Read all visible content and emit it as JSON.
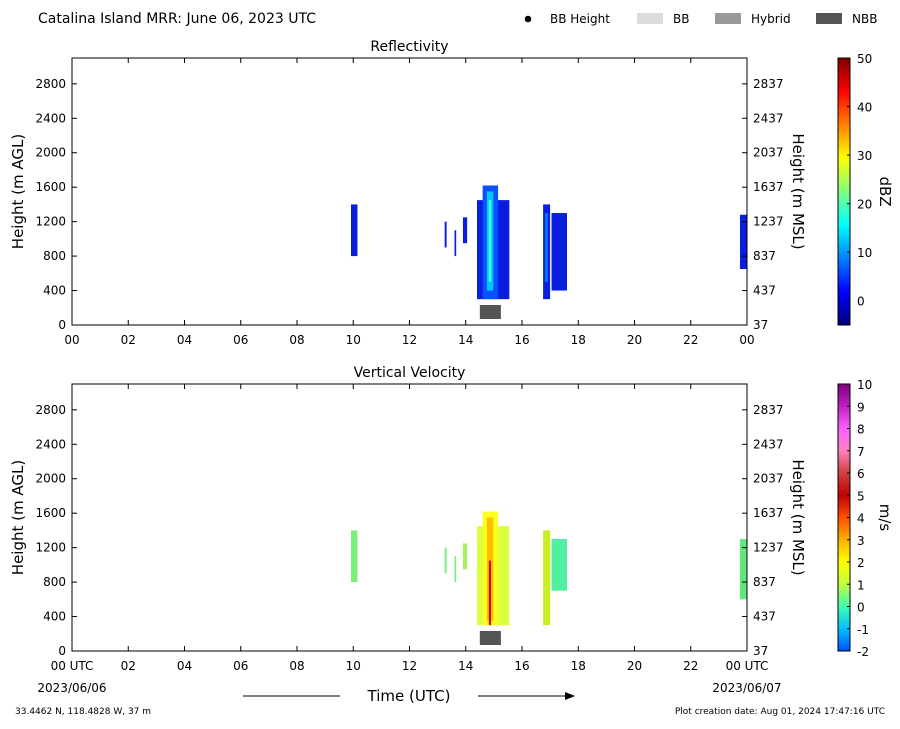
{
  "header": {
    "title": "Catalina Island MRR:  June 06, 2023 UTC",
    "legend": [
      {
        "label": "BB Height",
        "kind": "dot",
        "color": "#000000"
      },
      {
        "label": "BB",
        "kind": "rect",
        "color": "#dcdcdc"
      },
      {
        "label": "Hybrid",
        "kind": "rect",
        "color": "#999999"
      },
      {
        "label": "NBB",
        "kind": "rect",
        "color": "#555555"
      }
    ]
  },
  "footer": {
    "time_label": "Time (UTC)",
    "start_date": "2023/06/06",
    "end_date": "2023/06/07",
    "location": "33.4462 N, 118.4828 W, 37 m",
    "creation": "Plot creation date: Aug 01, 2024 17:47:16 UTC"
  },
  "chart_data": [
    {
      "type": "heatmap",
      "title": "Reflectivity",
      "ylabel": "Height (m AGL)",
      "y2label": "Height (m MSL)",
      "cbar_label": "dBZ",
      "xlim": [
        0,
        24
      ],
      "ylim": [
        0,
        3100
      ],
      "x_tick_labels": [
        "00",
        "02",
        "04",
        "06",
        "08",
        "10",
        "12",
        "14",
        "16",
        "18",
        "20",
        "22",
        "00"
      ],
      "y_ticks": [
        0,
        400,
        800,
        1200,
        1600,
        2000,
        2400,
        2800
      ],
      "y2_tick_labels": [
        "37",
        "437",
        "837",
        "1237",
        "1637",
        "2037",
        "2437",
        "2837"
      ],
      "cbar_range": [
        -5,
        50
      ],
      "cbar_ticks": [
        0,
        10,
        20,
        30,
        40,
        50
      ],
      "colormap": [
        "#00007f",
        "#0000ff",
        "#0080ff",
        "#00ffff",
        "#80ff80",
        "#ffff00",
        "#ff8000",
        "#ff0000",
        "#7f0000"
      ],
      "echoes": [
        {
          "t0": 9.92,
          "t1": 10.15,
          "h0": 800,
          "h1": 1400,
          "color": "#0a1ee0"
        },
        {
          "t0": 13.25,
          "t1": 13.32,
          "h0": 900,
          "h1": 1200,
          "color": "#0a1ee0"
        },
        {
          "t0": 13.6,
          "t1": 13.66,
          "h0": 800,
          "h1": 1100,
          "color": "#0a1ee0"
        },
        {
          "t0": 13.9,
          "t1": 14.05,
          "h0": 950,
          "h1": 1250,
          "color": "#0a1ee0"
        },
        {
          "t0": 14.4,
          "t1": 15.55,
          "h0": 300,
          "h1": 1450,
          "color": "#0a1ee0"
        },
        {
          "t0": 14.6,
          "t1": 15.15,
          "h0": 300,
          "h1": 1620,
          "color": "#0a50ff"
        },
        {
          "t0": 14.75,
          "t1": 14.98,
          "h0": 400,
          "h1": 1550,
          "color": "#00c8ff"
        },
        {
          "t0": 14.82,
          "t1": 14.9,
          "h0": 500,
          "h1": 1450,
          "color": "#40ffc0"
        },
        {
          "t0": 16.75,
          "t1": 17.0,
          "h0": 300,
          "h1": 1400,
          "color": "#0a1ee0"
        },
        {
          "t0": 16.82,
          "t1": 16.92,
          "h0": 500,
          "h1": 1300,
          "color": "#0078ff"
        },
        {
          "t0": 17.05,
          "t1": 17.6,
          "h0": 400,
          "h1": 1300,
          "color": "#0a1ee0"
        },
        {
          "t0": 23.75,
          "t1": 24.0,
          "h0": 650,
          "h1": 1280,
          "color": "#0a1ee0"
        }
      ],
      "bright_band": [
        {
          "t0": 14.5,
          "t1": 15.25,
          "type": "NBB"
        }
      ]
    },
    {
      "type": "heatmap",
      "title": "Vertical Velocity",
      "ylabel": "Height (m AGL)",
      "y2label": "Height (m MSL)",
      "cbar_label": "m/s",
      "xlim": [
        0,
        24
      ],
      "ylim": [
        0,
        3100
      ],
      "x_tick_labels": [
        "00 UTC",
        "02",
        "04",
        "06",
        "08",
        "10",
        "12",
        "14",
        "16",
        "18",
        "20",
        "22",
        "00 UTC"
      ],
      "y_ticks": [
        0,
        400,
        800,
        1200,
        1600,
        2000,
        2400,
        2800
      ],
      "y2_tick_labels": [
        "37",
        "437",
        "837",
        "1237",
        "1637",
        "2037",
        "2437",
        "2837"
      ],
      "cbar_range": [
        -2,
        10
      ],
      "cbar_ticks": [
        -2,
        -1,
        0,
        1,
        2,
        3,
        4,
        5,
        6,
        7,
        8,
        9,
        10
      ],
      "colormap": [
        "#0050ff",
        "#00c0ff",
        "#40ffb0",
        "#c0ff40",
        "#ffff00",
        "#ffb000",
        "#ff5000",
        "#c00000",
        "#d04040",
        "#ff80c0",
        "#ff60ff",
        "#c020c0",
        "#800080"
      ],
      "echoes": [
        {
          "t0": 9.92,
          "t1": 10.15,
          "h0": 800,
          "h1": 1400,
          "color": "#7af07a"
        },
        {
          "t0": 13.25,
          "t1": 13.32,
          "h0": 900,
          "h1": 1200,
          "color": "#7af07a"
        },
        {
          "t0": 13.6,
          "t1": 13.66,
          "h0": 800,
          "h1": 1100,
          "color": "#7af07a"
        },
        {
          "t0": 13.9,
          "t1": 14.05,
          "h0": 950,
          "h1": 1250,
          "color": "#a8f060"
        },
        {
          "t0": 14.4,
          "t1": 15.55,
          "h0": 300,
          "h1": 1450,
          "color": "#d8ff40"
        },
        {
          "t0": 14.6,
          "t1": 15.15,
          "h0": 300,
          "h1": 1620,
          "color": "#ffff20"
        },
        {
          "t0": 14.75,
          "t1": 14.98,
          "h0": 350,
          "h1": 1550,
          "color": "#ffc000"
        },
        {
          "t0": 14.82,
          "t1": 14.9,
          "h0": 300,
          "h1": 1050,
          "color": "#c81010"
        },
        {
          "t0": 16.75,
          "t1": 17.0,
          "h0": 300,
          "h1": 1400,
          "color": "#c8f020"
        },
        {
          "t0": 17.05,
          "t1": 17.6,
          "h0": 700,
          "h1": 1300,
          "color": "#50f0a0"
        },
        {
          "t0": 23.75,
          "t1": 24.0,
          "h0": 600,
          "h1": 1300,
          "color": "#60e880"
        }
      ],
      "bright_band": [
        {
          "t0": 14.5,
          "t1": 15.25,
          "type": "NBB"
        }
      ]
    }
  ]
}
